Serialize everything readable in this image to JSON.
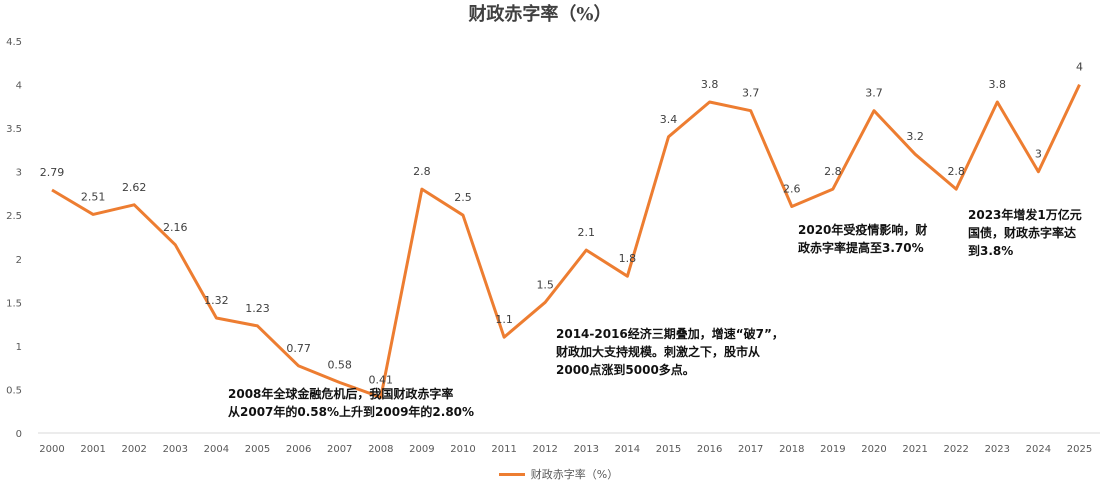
{
  "chart_data": {
    "type": "line",
    "title": "财政赤字率（%）",
    "categories": [
      "2000",
      "2001",
      "2002",
      "2003",
      "2004",
      "2005",
      "2006",
      "2007",
      "2008",
      "2009",
      "2010",
      "2011",
      "2012",
      "2013",
      "2014",
      "2015",
      "2016",
      "2017",
      "2018",
      "2019",
      "2020",
      "2021",
      "2022",
      "2023",
      "2024",
      "2025"
    ],
    "series": [
      {
        "name": "财政赤字率（%）",
        "color": "#ED7D31",
        "values": [
          2.79,
          2.51,
          2.62,
          2.16,
          1.32,
          1.23,
          0.77,
          0.58,
          0.41,
          2.8,
          2.5,
          1.1,
          1.5,
          2.1,
          1.8,
          3.4,
          3.8,
          3.7,
          2.6,
          2.8,
          3.7,
          3.2,
          2.8,
          3.8,
          3,
          4
        ],
        "labels": [
          "2.79",
          "2.51",
          "2.62",
          "2.16",
          "1.32",
          "1.23",
          "0.77",
          "0.58",
          "0.41",
          "2.8",
          "2.5",
          "1.1",
          "1.5",
          "2.1",
          "1.8",
          "3.4",
          "3.8",
          "3.7",
          "2.6",
          "2.8",
          "3.7",
          "3.2",
          "2.8",
          "3.8",
          "3",
          "4"
        ]
      }
    ],
    "yticks": [
      "0",
      "0.5",
      "1",
      "1.5",
      "2",
      "2.5",
      "3",
      "3.5",
      "4",
      "4.5"
    ],
    "ylim": [
      0,
      4.5
    ],
    "grid": false,
    "legend_position": "bottom",
    "annotations": [
      "2008年全球金融危机后，我国财政赤字率\n从2007年的0.58%上升到2009年的2.80%",
      "2014-2016经济三期叠加，增速“破7”，\n财政加大支持规模。刺激之下，股市从\n2000点涨到5000多点。",
      "2020年受疫情影响，财\n政赤字率提高至3.70%",
      "2023年增发1万亿元\n国债，财政赤字率达\n到3.8%"
    ]
  }
}
